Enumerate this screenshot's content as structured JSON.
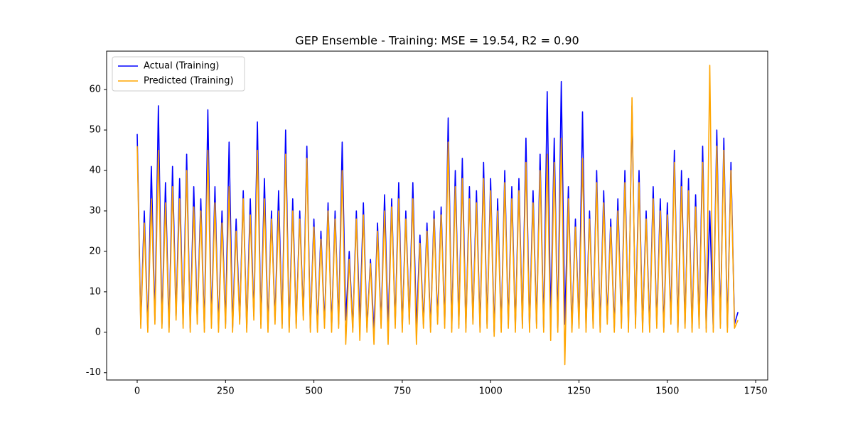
{
  "chart_data": {
    "type": "line",
    "title": "GEP Ensemble - Training: MSE = 19.54, R2 = 0.90",
    "x": [
      0,
      10,
      20,
      30,
      40,
      50,
      60,
      70,
      80,
      90,
      100,
      110,
      120,
      130,
      140,
      150,
      160,
      170,
      180,
      190,
      200,
      210,
      220,
      230,
      240,
      250,
      260,
      270,
      280,
      290,
      300,
      310,
      320,
      330,
      340,
      350,
      360,
      370,
      380,
      390,
      400,
      410,
      420,
      430,
      440,
      450,
      460,
      470,
      480,
      490,
      500,
      510,
      520,
      530,
      540,
      550,
      560,
      570,
      580,
      590,
      600,
      610,
      620,
      630,
      640,
      650,
      660,
      670,
      680,
      690,
      700,
      710,
      720,
      730,
      740,
      750,
      760,
      770,
      780,
      790,
      800,
      810,
      820,
      830,
      840,
      850,
      860,
      870,
      880,
      890,
      900,
      910,
      920,
      930,
      940,
      950,
      960,
      970,
      980,
      990,
      1000,
      1010,
      1020,
      1030,
      1040,
      1050,
      1060,
      1070,
      1080,
      1090,
      1100,
      1110,
      1120,
      1130,
      1140,
      1150,
      1160,
      1170,
      1180,
      1190,
      1200,
      1210,
      1220,
      1230,
      1240,
      1250,
      1260,
      1270,
      1280,
      1290,
      1300,
      1310,
      1320,
      1330,
      1340,
      1350,
      1360,
      1370,
      1380,
      1390,
      1400,
      1410,
      1420,
      1430,
      1440,
      1450,
      1460,
      1470,
      1480,
      1490,
      1500,
      1510,
      1520,
      1530,
      1540,
      1550,
      1560,
      1570,
      1580,
      1590,
      1600,
      1610,
      1620,
      1630,
      1640,
      1650,
      1660,
      1670,
      1680,
      1690,
      1700
    ],
    "series": [
      {
        "name": "Actual (Training)",
        "color": "#0000ff",
        "values": [
          49,
          2,
          30,
          1,
          41,
          3,
          56,
          2,
          37,
          1,
          41,
          4,
          38,
          2,
          44,
          1,
          36,
          3,
          33,
          1,
          55,
          2,
          36,
          1,
          30,
          2,
          47,
          1,
          28,
          3,
          35,
          1,
          33,
          4,
          52,
          2,
          38,
          1,
          30,
          3,
          35,
          2,
          50,
          1,
          33,
          2,
          30,
          4,
          46,
          1,
          28,
          1,
          25,
          2,
          32,
          1,
          30,
          2,
          47,
          3,
          20,
          1,
          30,
          2,
          32,
          1,
          18,
          0,
          27,
          2,
          34,
          1,
          33,
          2,
          37,
          1,
          30,
          3,
          37,
          1,
          24,
          2,
          27,
          1,
          30,
          3,
          31,
          2,
          53,
          1,
          40,
          2,
          43,
          1,
          36,
          3,
          35,
          1,
          42,
          2,
          38,
          0,
          33,
          1,
          40,
          2,
          36,
          1,
          38,
          2,
          48,
          1,
          35,
          2,
          44,
          1,
          59.5,
          3,
          48,
          1,
          62,
          2,
          36,
          1,
          28,
          2,
          54.5,
          1,
          30,
          2,
          40,
          1,
          35,
          3,
          28,
          1,
          33,
          2,
          40,
          1,
          56,
          2,
          40,
          1,
          30,
          1,
          36,
          2,
          33,
          1,
          32,
          3,
          45,
          1,
          40,
          2,
          38,
          1,
          34,
          2,
          46,
          1,
          30,
          1,
          50,
          2,
          48,
          1,
          42,
          2,
          5
        ]
      },
      {
        "name": "Predicted (Training)",
        "color": "#ffa500",
        "values": [
          46,
          1,
          27,
          0,
          33,
          2,
          45,
          1,
          32,
          0,
          36,
          3,
          33,
          1,
          40,
          0,
          31,
          2,
          30,
          0,
          45,
          1,
          32,
          0,
          27,
          1,
          36,
          0,
          25,
          2,
          33,
          0,
          29,
          3,
          45,
          1,
          33,
          0,
          28,
          2,
          30,
          1,
          44,
          0,
          30,
          1,
          28,
          3,
          43,
          0,
          26,
          0,
          23,
          1,
          30,
          0,
          28,
          1,
          40,
          -3,
          18,
          0,
          28,
          -2,
          29,
          0,
          17,
          -3,
          25,
          1,
          30,
          -3,
          31,
          1,
          33,
          0,
          28,
          2,
          33,
          -3,
          22,
          1,
          25,
          0,
          28,
          2,
          29,
          1,
          47,
          0,
          36,
          1,
          38,
          0,
          33,
          2,
          32,
          0,
          38,
          1,
          35,
          -1,
          30,
          0,
          37,
          1,
          33,
          0,
          35,
          1,
          42,
          0,
          32,
          1,
          40,
          0,
          44,
          -2,
          42,
          0,
          48,
          -8,
          33,
          0,
          26,
          1,
          43,
          0,
          28,
          1,
          37,
          0,
          32,
          2,
          26,
          0,
          30,
          1,
          37,
          0,
          58,
          1,
          37,
          0,
          28,
          0,
          33,
          1,
          30,
          0,
          29,
          2,
          42,
          0,
          36,
          1,
          35,
          0,
          31,
          1,
          42,
          0,
          66,
          0,
          46,
          1,
          45,
          0,
          40,
          1,
          3
        ]
      }
    ],
    "xlim": [
      -86.5,
      1784
    ],
    "xticks": [
      0,
      250,
      500,
      750,
      1000,
      1250,
      1500,
      1750
    ],
    "ylim": [
      -11.8,
      69.5
    ],
    "yticks": [
      -10,
      0,
      10,
      20,
      30,
      40,
      50,
      60
    ],
    "legend": "upper left",
    "grid": false
  }
}
